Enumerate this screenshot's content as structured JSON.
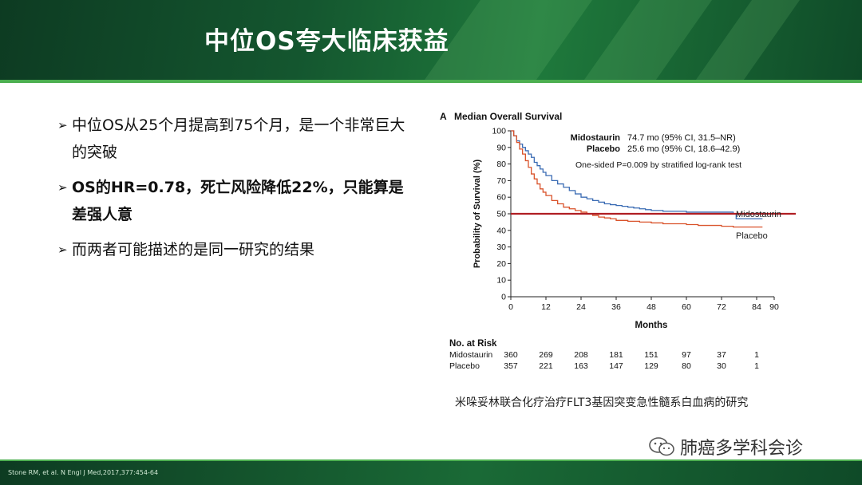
{
  "slide": {
    "title": "中位OS夸大临床获益",
    "bullets": [
      {
        "mark": "➢",
        "text": "中位OS从25个月提高到75个月，是一个非常巨大的突破",
        "bold": false
      },
      {
        "mark": "➢",
        "text": "OS的HR=0.78，死亡风险降低22%，只能算是差强人意",
        "bold": true
      },
      {
        "mark": "➢",
        "text": "而两者可能描述的是同一研究的结果",
        "bold": false
      }
    ],
    "caption": "米哚妥林联合化疗治疗FLT3基因突变急性髓系白血病的研究",
    "watermark": "肺癌多学科会诊",
    "citation": "Stone RM, et al. N Engl J Med,2017,377:454-64"
  },
  "chart_data": {
    "type": "line",
    "panel_label": "A",
    "title": "Median Overall Survival",
    "xlabel": "Months",
    "ylabel": "Probability of Survival (%)",
    "xlim": [
      0,
      90
    ],
    "ylim": [
      0,
      100
    ],
    "x_ticks": [
      0,
      12,
      24,
      36,
      48,
      60,
      72,
      84,
      90
    ],
    "y_ticks": [
      0,
      10,
      20,
      30,
      40,
      50,
      60,
      70,
      80,
      90,
      100
    ],
    "reference_line": {
      "y": 50,
      "color": "#b01e23"
    },
    "annotations": {
      "mido_name": "Midostaurin",
      "mido_stat": "74.7 mo (95% CI, 31.5–NR)",
      "placebo_name": "Placebo",
      "placebo_stat": "25.6 mo (95% CI, 18.6–42.9)",
      "test": "One-sided P=0.009 by stratified log-rank test"
    },
    "series": [
      {
        "name": "Midostaurin",
        "color": "#3b6cb4",
        "x": [
          0,
          1,
          2,
          3,
          4,
          5,
          6,
          7,
          8,
          9,
          10,
          11,
          12,
          14,
          16,
          18,
          20,
          22,
          24,
          26,
          28,
          30,
          32,
          34,
          36,
          38,
          40,
          42,
          44,
          46,
          48,
          52,
          56,
          60,
          64,
          68,
          72,
          76,
          77,
          80,
          84,
          86
        ],
        "y": [
          100,
          97,
          94,
          92,
          90,
          88,
          86,
          84,
          81,
          79,
          77,
          75,
          73,
          70,
          68,
          66,
          64,
          62,
          60,
          59,
          58,
          57,
          56,
          55.5,
          55,
          54.5,
          54,
          53.5,
          53,
          52.5,
          52,
          51.5,
          51.5,
          51,
          51,
          51,
          51,
          50,
          47,
          47,
          47,
          47
        ]
      },
      {
        "name": "Placebo",
        "color": "#d9532b",
        "x": [
          0,
          1,
          2,
          3,
          4,
          5,
          6,
          7,
          8,
          9,
          10,
          11,
          12,
          14,
          16,
          18,
          20,
          22,
          24,
          26,
          28,
          30,
          32,
          34,
          36,
          40,
          44,
          48,
          52,
          56,
          60,
          64,
          68,
          72,
          76,
          80,
          84,
          86
        ],
        "y": [
          100,
          97,
          93,
          89,
          86,
          82,
          78,
          74,
          71,
          68,
          65,
          63,
          61,
          58,
          56,
          54,
          53,
          52,
          51,
          50,
          49,
          48,
          47.5,
          47,
          46,
          45.5,
          45,
          44.5,
          44,
          44,
          43.5,
          43,
          43,
          42.5,
          42,
          42,
          42,
          42
        ]
      }
    ],
    "risk_table": {
      "label": "No. at Risk",
      "times": [
        0,
        12,
        24,
        36,
        48,
        60,
        72,
        84
      ],
      "rows": [
        {
          "name": "Midostaurin",
          "values": [
            "360",
            "269",
            "208",
            "181",
            "151",
            "97",
            "37",
            "1"
          ]
        },
        {
          "name": "Placebo",
          "values": [
            "357",
            "221",
            "163",
            "147",
            "129",
            "80",
            "30",
            "1"
          ]
        }
      ]
    }
  }
}
